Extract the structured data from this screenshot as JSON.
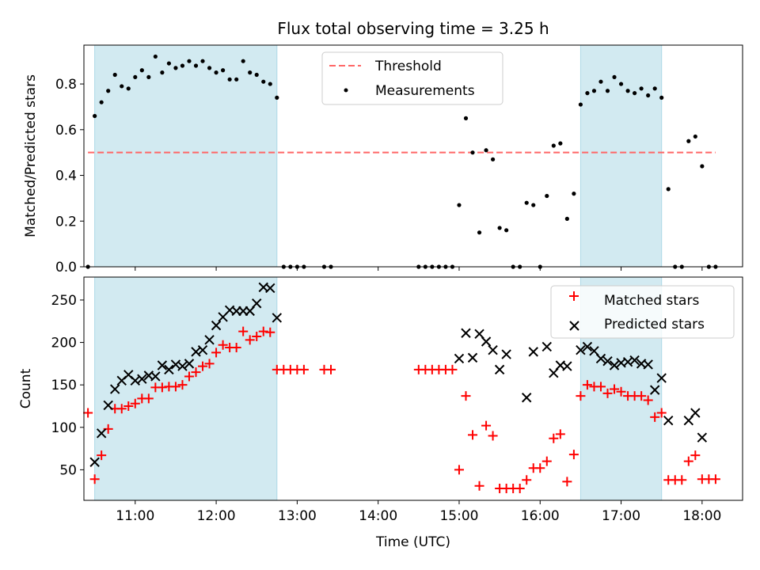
{
  "title": "Flux total observing time = 3.25 h",
  "colors": {
    "shade": "#add8e6",
    "threshold": "#ff6666",
    "measurement": "#000000",
    "matched": "#ff0000",
    "predicted": "#000000"
  },
  "chart_data": [
    {
      "type": "scatter",
      "panel": "top",
      "ylabel": "Matched/Predicted stars",
      "xlim": [
        "10:22",
        "18:30"
      ],
      "ylim": [
        0,
        0.97
      ],
      "yticks": [
        0.0,
        0.2,
        0.4,
        0.6,
        0.8
      ],
      "ytick_labels": [
        "0.0",
        "0.2",
        "0.4",
        "0.6",
        "0.8"
      ],
      "shaded_intervals": [
        [
          "10:30",
          "12:45"
        ],
        [
          "16:30",
          "17:30"
        ]
      ],
      "threshold": {
        "name": "Threshold",
        "value": 0.5,
        "x_range": [
          "10:25",
          "18:10"
        ]
      },
      "legend": {
        "position": "top-center",
        "entries": [
          "Threshold",
          "Measurements"
        ]
      },
      "series": [
        {
          "name": "Measurements",
          "marker": "dot",
          "points": [
            [
              "10:25",
              0.0
            ],
            [
              "10:30",
              0.66
            ],
            [
              "10:35",
              0.72
            ],
            [
              "10:40",
              0.77
            ],
            [
              "10:45",
              0.84
            ],
            [
              "10:50",
              0.79
            ],
            [
              "10:55",
              0.78
            ],
            [
              "11:00",
              0.83
            ],
            [
              "11:05",
              0.86
            ],
            [
              "11:10",
              0.83
            ],
            [
              "11:15",
              0.92
            ],
            [
              "11:20",
              0.85
            ],
            [
              "11:25",
              0.89
            ],
            [
              "11:30",
              0.87
            ],
            [
              "11:35",
              0.88
            ],
            [
              "11:40",
              0.9
            ],
            [
              "11:45",
              0.88
            ],
            [
              "11:50",
              0.9
            ],
            [
              "11:55",
              0.87
            ],
            [
              "12:00",
              0.85
            ],
            [
              "12:05",
              0.86
            ],
            [
              "12:10",
              0.82
            ],
            [
              "12:15",
              0.82
            ],
            [
              "12:20",
              0.9
            ],
            [
              "12:25",
              0.85
            ],
            [
              "12:30",
              0.84
            ],
            [
              "12:35",
              0.81
            ],
            [
              "12:40",
              0.8
            ],
            [
              "12:45",
              0.74
            ],
            [
              "12:50",
              0.0
            ],
            [
              "12:55",
              0.0
            ],
            [
              "13:00",
              0.0
            ],
            [
              "13:05",
              0.0
            ],
            [
              "13:20",
              0.0
            ],
            [
              "13:25",
              0.0
            ],
            [
              "14:30",
              0.0
            ],
            [
              "14:35",
              0.0
            ],
            [
              "14:40",
              0.0
            ],
            [
              "14:45",
              0.0
            ],
            [
              "14:50",
              0.0
            ],
            [
              "14:55",
              0.0
            ],
            [
              "15:00",
              0.27
            ],
            [
              "15:05",
              0.65
            ],
            [
              "15:10",
              0.5
            ],
            [
              "15:15",
              0.15
            ],
            [
              "15:20",
              0.51
            ],
            [
              "15:25",
              0.47
            ],
            [
              "15:30",
              0.17
            ],
            [
              "15:35",
              0.16
            ],
            [
              "15:40",
              0.0
            ],
            [
              "15:45",
              0.0
            ],
            [
              "15:50",
              0.28
            ],
            [
              "15:55",
              0.27
            ],
            [
              "16:00",
              0.0
            ],
            [
              "16:05",
              0.31
            ],
            [
              "16:10",
              0.53
            ],
            [
              "16:15",
              0.54
            ],
            [
              "16:20",
              0.21
            ],
            [
              "16:25",
              0.32
            ],
            [
              "16:30",
              0.71
            ],
            [
              "16:35",
              0.76
            ],
            [
              "16:40",
              0.77
            ],
            [
              "16:45",
              0.81
            ],
            [
              "16:50",
              0.77
            ],
            [
              "16:55",
              0.83
            ],
            [
              "17:00",
              0.8
            ],
            [
              "17:05",
              0.77
            ],
            [
              "17:10",
              0.76
            ],
            [
              "17:15",
              0.78
            ],
            [
              "17:20",
              0.75
            ],
            [
              "17:25",
              0.78
            ],
            [
              "17:30",
              0.74
            ],
            [
              "17:35",
              0.34
            ],
            [
              "17:40",
              0.0
            ],
            [
              "17:45",
              0.0
            ],
            [
              "17:50",
              0.55
            ],
            [
              "17:55",
              0.57
            ],
            [
              "18:00",
              0.44
            ],
            [
              "18:05",
              0.0
            ],
            [
              "18:10",
              0.0
            ]
          ]
        }
      ]
    },
    {
      "type": "scatter",
      "panel": "bottom",
      "xlabel": "Time (UTC)",
      "ylabel": "Count",
      "xlim": [
        "10:22",
        "18:30"
      ],
      "ylim": [
        14,
        277
      ],
      "xticks": [
        "11:00",
        "12:00",
        "13:00",
        "14:00",
        "15:00",
        "16:00",
        "17:00",
        "18:00"
      ],
      "yticks": [
        50,
        100,
        150,
        200,
        250
      ],
      "shaded_intervals": [
        [
          "10:30",
          "12:45"
        ],
        [
          "16:30",
          "17:30"
        ]
      ],
      "legend": {
        "position": "top-right",
        "entries": [
          "Matched stars",
          "Predicted stars"
        ]
      },
      "series": [
        {
          "name": "Matched stars",
          "marker": "plus",
          "points": [
            [
              "10:25",
              117
            ],
            [
              "10:30",
              39
            ],
            [
              "10:35",
              67
            ],
            [
              "10:40",
              98
            ],
            [
              "10:45",
              122
            ],
            [
              "10:50",
              122
            ],
            [
              "10:55",
              125
            ],
            [
              "11:00",
              128
            ],
            [
              "11:05",
              134
            ],
            [
              "11:10",
              134
            ],
            [
              "11:15",
              147
            ],
            [
              "11:20",
              147
            ],
            [
              "11:25",
              148
            ],
            [
              "11:30",
              148
            ],
            [
              "11:35",
              150
            ],
            [
              "11:40",
              160
            ],
            [
              "11:45",
              165
            ],
            [
              "11:50",
              172
            ],
            [
              "11:55",
              175
            ],
            [
              "12:00",
              188
            ],
            [
              "12:05",
              197
            ],
            [
              "12:10",
              194
            ],
            [
              "12:15",
              194
            ],
            [
              "12:20",
              213
            ],
            [
              "12:25",
              203
            ],
            [
              "12:30",
              207
            ],
            [
              "12:35",
              213
            ],
            [
              "12:40",
              212
            ],
            [
              "12:45",
              168
            ],
            [
              "12:50",
              168
            ],
            [
              "12:55",
              168
            ],
            [
              "13:00",
              168
            ],
            [
              "13:05",
              168
            ],
            [
              "13:20",
              168
            ],
            [
              "13:25",
              168
            ],
            [
              "14:30",
              168
            ],
            [
              "14:35",
              168
            ],
            [
              "14:40",
              168
            ],
            [
              "14:45",
              168
            ],
            [
              "14:50",
              168
            ],
            [
              "14:55",
              168
            ],
            [
              "15:00",
              50
            ],
            [
              "15:05",
              137
            ],
            [
              "15:10",
              91
            ],
            [
              "15:15",
              31
            ],
            [
              "15:20",
              102
            ],
            [
              "15:25",
              90
            ],
            [
              "15:30",
              28
            ],
            [
              "15:35",
              28
            ],
            [
              "15:40",
              28
            ],
            [
              "15:45",
              28
            ],
            [
              "15:50",
              38
            ],
            [
              "15:55",
              52
            ],
            [
              "16:00",
              52
            ],
            [
              "16:05",
              60
            ],
            [
              "16:10",
              87
            ],
            [
              "16:15",
              92
            ],
            [
              "16:20",
              36
            ],
            [
              "16:25",
              68
            ],
            [
              "16:30",
              137
            ],
            [
              "16:35",
              150
            ],
            [
              "16:40",
              148
            ],
            [
              "16:45",
              148
            ],
            [
              "16:50",
              140
            ],
            [
              "16:55",
              145
            ],
            [
              "17:00",
              142
            ],
            [
              "17:05",
              137
            ],
            [
              "17:10",
              137
            ],
            [
              "17:15",
              137
            ],
            [
              "17:20",
              132
            ],
            [
              "17:25",
              112
            ],
            [
              "17:30",
              117
            ],
            [
              "17:35",
              38
            ],
            [
              "17:40",
              38
            ],
            [
              "17:45",
              38
            ],
            [
              "17:50",
              60
            ],
            [
              "17:55",
              67
            ],
            [
              "18:00",
              39
            ],
            [
              "18:05",
              39
            ],
            [
              "18:10",
              39
            ]
          ]
        },
        {
          "name": "Predicted stars",
          "marker": "x",
          "points": [
            [
              "10:30",
              59
            ],
            [
              "10:35",
              93
            ],
            [
              "10:40",
              126
            ],
            [
              "10:45",
              145
            ],
            [
              "10:50",
              155
            ],
            [
              "10:55",
              162
            ],
            [
              "11:00",
              155
            ],
            [
              "11:05",
              157
            ],
            [
              "11:10",
              161
            ],
            [
              "11:15",
              160
            ],
            [
              "11:20",
              173
            ],
            [
              "11:25",
              168
            ],
            [
              "11:30",
              174
            ],
            [
              "11:35",
              172
            ],
            [
              "11:40",
              175
            ],
            [
              "11:45",
              189
            ],
            [
              "11:50",
              191
            ],
            [
              "11:55",
              203
            ],
            [
              "12:00",
              220
            ],
            [
              "12:05",
              230
            ],
            [
              "12:10",
              238
            ],
            [
              "12:15",
              237
            ],
            [
              "12:20",
              237
            ],
            [
              "12:25",
              237
            ],
            [
              "12:30",
              246
            ],
            [
              "12:35",
              265
            ],
            [
              "12:40",
              264
            ],
            [
              "12:45",
              229
            ],
            [
              "15:00",
              181
            ],
            [
              "15:05",
              211
            ],
            [
              "15:10",
              182
            ],
            [
              "15:15",
              210
            ],
            [
              "15:20",
              201
            ],
            [
              "15:25",
              191
            ],
            [
              "15:30",
              168
            ],
            [
              "15:35",
              186
            ],
            [
              "15:50",
              135
            ],
            [
              "15:55",
              189
            ],
            [
              "16:05",
              195
            ],
            [
              "16:10",
              164
            ],
            [
              "16:15",
              173
            ],
            [
              "16:20",
              172
            ],
            [
              "16:30",
              191
            ],
            [
              "16:35",
              195
            ],
            [
              "16:40",
              190
            ],
            [
              "16:45",
              181
            ],
            [
              "16:50",
              178
            ],
            [
              "16:55",
              173
            ],
            [
              "17:00",
              176
            ],
            [
              "17:05",
              177
            ],
            [
              "17:10",
              179
            ],
            [
              "17:15",
              175
            ],
            [
              "17:20",
              174
            ],
            [
              "17:25",
              144
            ],
            [
              "17:30",
              158
            ],
            [
              "17:35",
              108
            ],
            [
              "17:50",
              108
            ],
            [
              "17:55",
              117
            ],
            [
              "18:00",
              88
            ]
          ]
        }
      ]
    }
  ]
}
